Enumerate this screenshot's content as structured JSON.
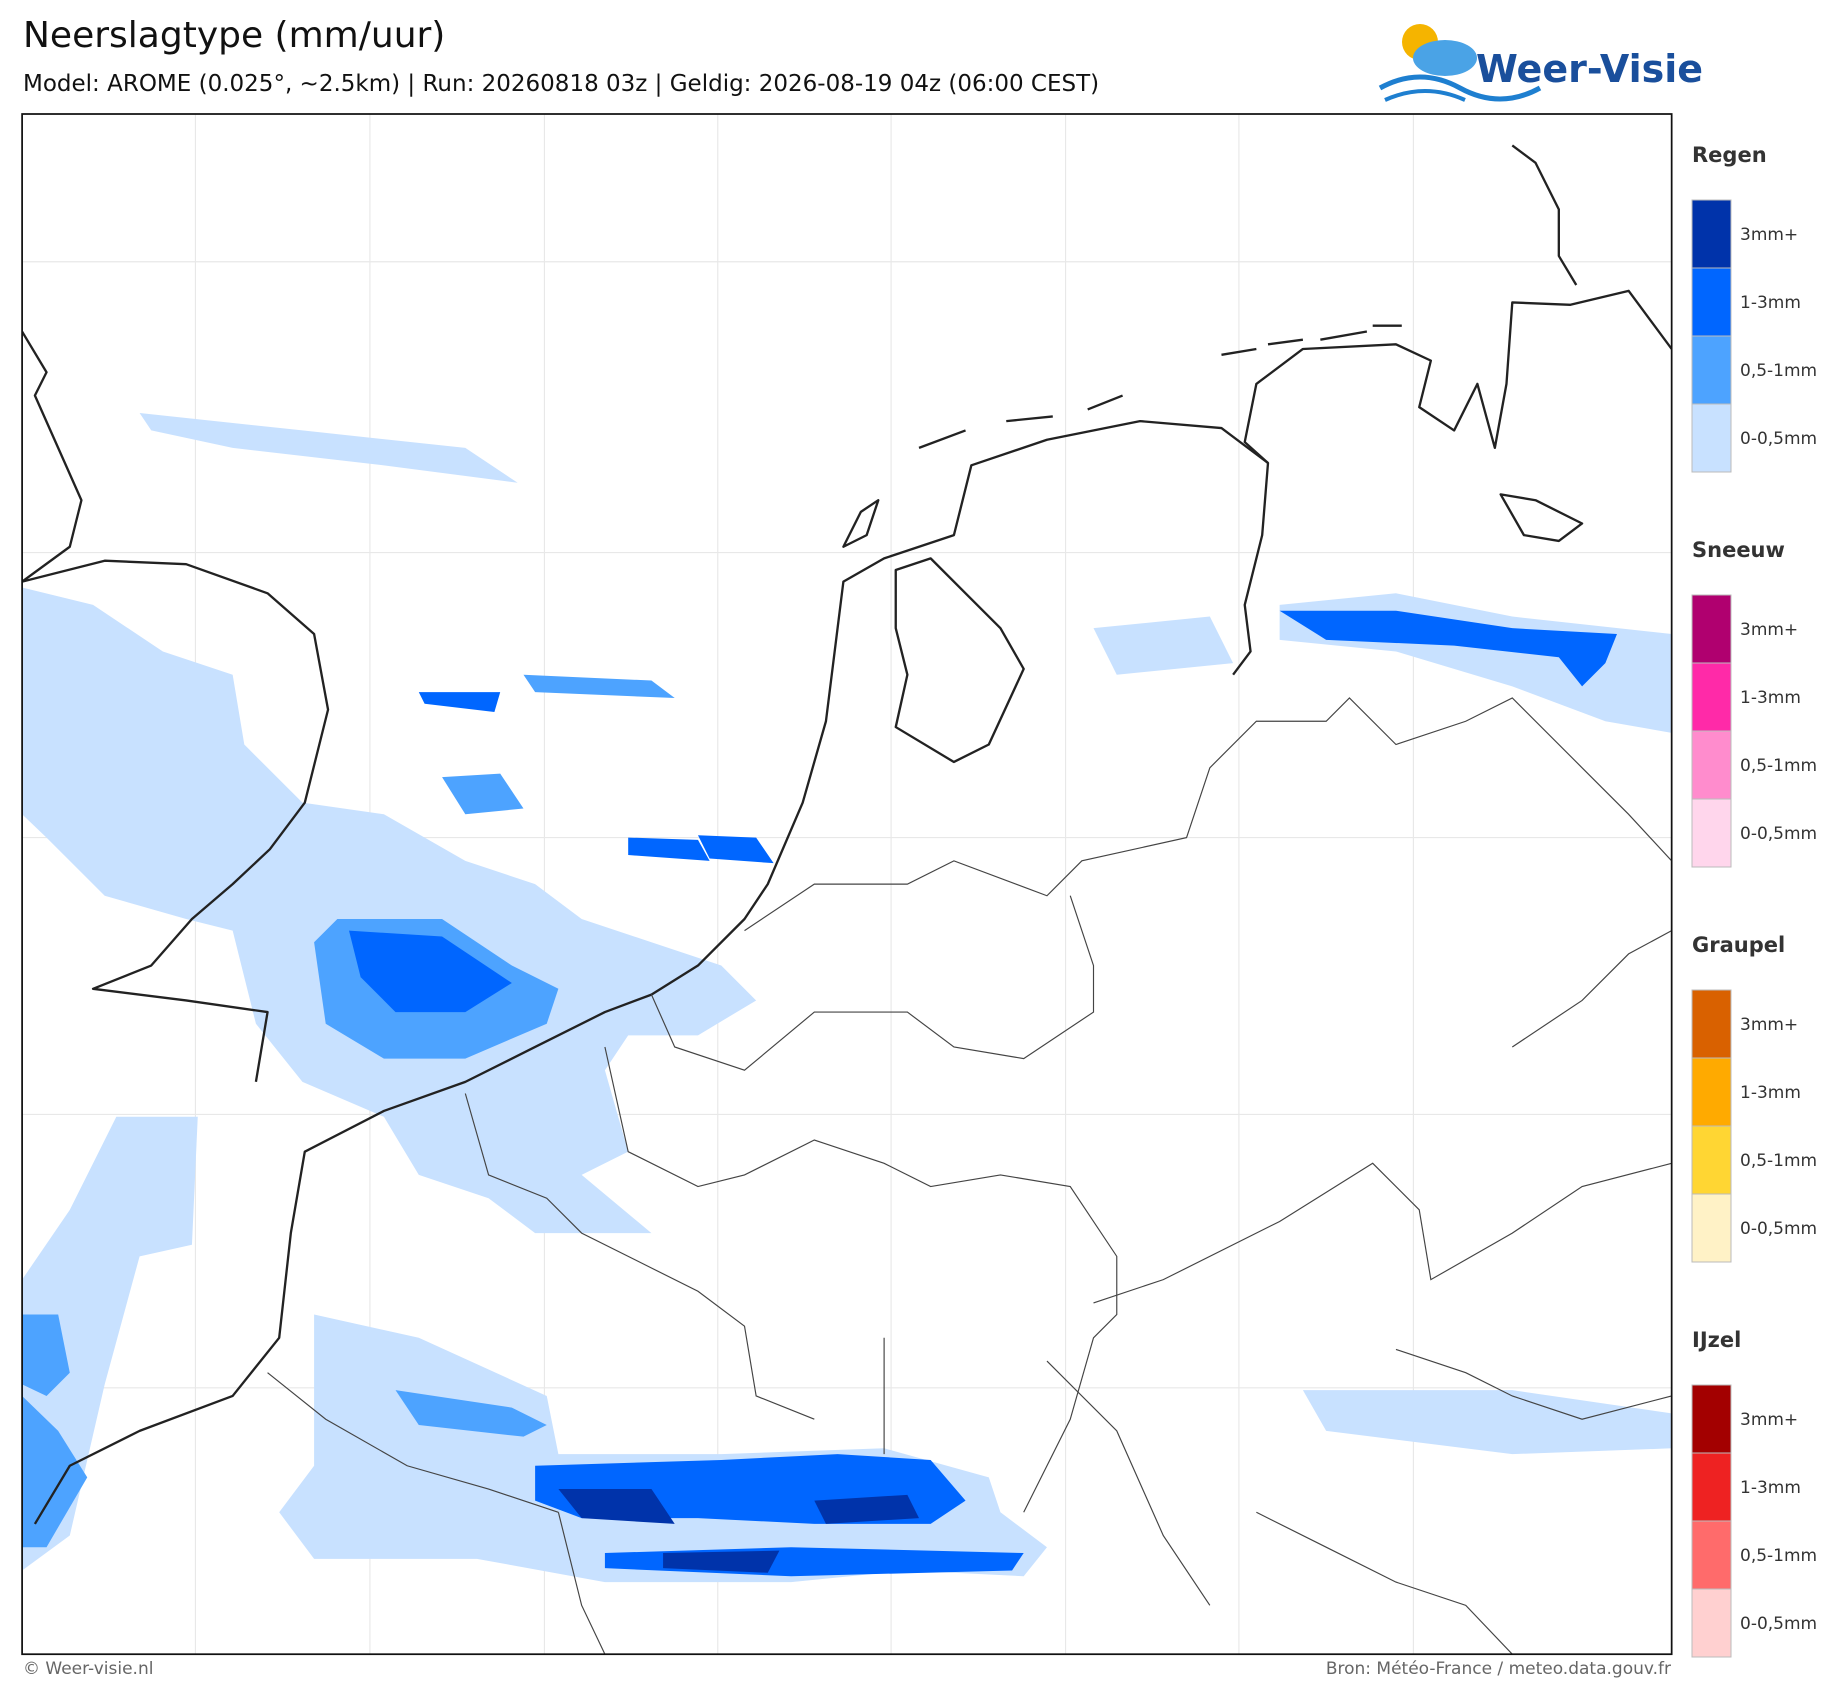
{
  "header": {
    "title": "Neerslagtype (mm/uur)",
    "subtitle": "Model: AROME (0.025°, ~2.5km)  |  Run: 20260818 03z  |  Geldig: 2026-08-19 04z (06:00 CEST)",
    "logo": "Weer-Visie"
  },
  "legend": [
    {
      "title": "Regen",
      "items": [
        {
          "label": "3mm+",
          "color": "#0033aa"
        },
        {
          "label": "1-3mm",
          "color": "#0066ff"
        },
        {
          "label": "0,5-1mm",
          "color": "#4da3ff"
        },
        {
          "label": "0-0,5mm",
          "color": "#c8e1ff"
        }
      ]
    },
    {
      "title": "Sneeuw",
      "items": [
        {
          "label": "3mm+",
          "color": "#b0006f"
        },
        {
          "label": "1-3mm",
          "color": "#ff2aa8"
        },
        {
          "label": "0,5-1mm",
          "color": "#ff8ccd"
        },
        {
          "label": "0-0,5mm",
          "color": "#ffd6ec"
        }
      ]
    },
    {
      "title": "Graupel",
      "items": [
        {
          "label": "3mm+",
          "color": "#d96100"
        },
        {
          "label": "1-3mm",
          "color": "#ffaa00"
        },
        {
          "label": "0,5-1mm",
          "color": "#ffd633"
        },
        {
          "label": "0-0,5mm",
          "color": "#fff2c6"
        }
      ]
    },
    {
      "title": "IJzel",
      "items": [
        {
          "label": "3mm+",
          "color": "#a30000"
        },
        {
          "label": "1-3mm",
          "color": "#ee2222"
        },
        {
          "label": "0,5-1mm",
          "color": "#ff6b6b"
        },
        {
          "label": "0-0,5mm",
          "color": "#ffd0d0"
        }
      ]
    }
  ],
  "footer": {
    "left": "© Weer-visie.nl",
    "right": "Bron: Météo-France / meteo.data.gouv.fr"
  }
}
